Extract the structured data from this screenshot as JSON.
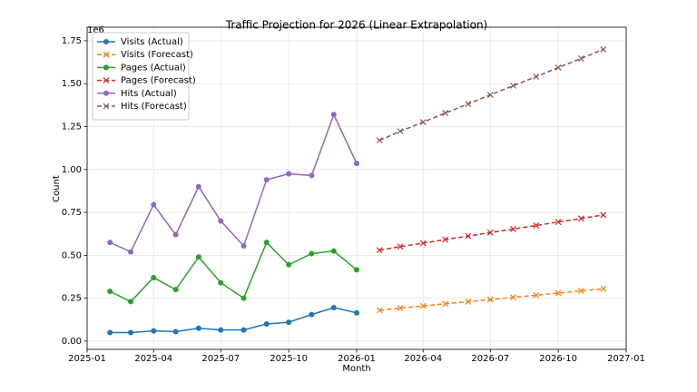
{
  "chart_data": {
    "type": "line",
    "title": "Traffic Projection for 2026 (Linear Extrapolation)",
    "x_label": "Month",
    "y_label": "Count",
    "y_offset_label": "1e6",
    "xlim": [
      "2025-01",
      "2027-01"
    ],
    "xticks": [
      "2025-01",
      "2025-04",
      "2025-07",
      "2025-10",
      "2026-01",
      "2026-04",
      "2026-07",
      "2026-10",
      "2027-01"
    ],
    "ylim": [
      -48000,
      1829000
    ],
    "yticks": [
      {
        "value": 0,
        "label": "0.00"
      },
      {
        "value": 250000,
        "label": "0.25"
      },
      {
        "value": 500000,
        "label": "0.50"
      },
      {
        "value": 750000,
        "label": "0.75"
      },
      {
        "value": 1000000,
        "label": "1.00"
      },
      {
        "value": 1250000,
        "label": "1.25"
      },
      {
        "value": 1500000,
        "label": "1.50"
      },
      {
        "value": 1750000,
        "label": "1.75"
      }
    ],
    "grid": true,
    "legend": "upper-left",
    "series": [
      {
        "name": "Visits (Actual)",
        "color": "#1f77b4",
        "marker": "o",
        "linestyle": "solid",
        "x": [
          "2025-02",
          "2025-03",
          "2025-04",
          "2025-05",
          "2025-06",
          "2025-07",
          "2025-08",
          "2025-09",
          "2025-10",
          "2025-11",
          "2025-12",
          "2026-01"
        ],
        "values": [
          50000,
          50000,
          60000,
          55000,
          75000,
          65000,
          65000,
          100000,
          110000,
          155000,
          195000,
          165000
        ]
      },
      {
        "name": "Visits (Forecast)",
        "color": "#ff7f0e",
        "marker": "x",
        "linestyle": "dashed",
        "x": [
          "2026-02",
          "2026-03",
          "2026-04",
          "2026-05",
          "2026-06",
          "2026-07",
          "2026-08",
          "2026-09",
          "2026-10",
          "2026-11",
          "2026-12"
        ],
        "values": [
          180000,
          192500,
          205000,
          217500,
          230000,
          242500,
          255000,
          267500,
          280000,
          292500,
          305000
        ]
      },
      {
        "name": "Pages (Actual)",
        "color": "#2ca02c",
        "marker": "o",
        "linestyle": "solid",
        "x": [
          "2025-02",
          "2025-03",
          "2025-04",
          "2025-05",
          "2025-06",
          "2025-07",
          "2025-08",
          "2025-09",
          "2025-10",
          "2025-11",
          "2025-12",
          "2026-01"
        ],
        "values": [
          290000,
          230000,
          370000,
          300000,
          490000,
          340000,
          250000,
          575000,
          445000,
          510000,
          525000,
          415000
        ]
      },
      {
        "name": "Pages (Forecast)",
        "color": "#d62728",
        "marker": "x",
        "linestyle": "dashed",
        "x": [
          "2026-02",
          "2026-03",
          "2026-04",
          "2026-05",
          "2026-06",
          "2026-07",
          "2026-08",
          "2026-09",
          "2026-10",
          "2026-11",
          "2026-12"
        ],
        "values": [
          530000,
          550500,
          571000,
          591500,
          612000,
          632500,
          653000,
          673500,
          694000,
          714500,
          735000
        ]
      },
      {
        "name": "Hits (Actual)",
        "color": "#9467bd",
        "marker": "o",
        "linestyle": "solid",
        "x": [
          "2025-02",
          "2025-03",
          "2025-04",
          "2025-05",
          "2025-06",
          "2025-07",
          "2025-08",
          "2025-09",
          "2025-10",
          "2025-11",
          "2025-12",
          "2026-01"
        ],
        "values": [
          575000,
          520000,
          795000,
          620000,
          900000,
          700000,
          555000,
          940000,
          975000,
          965000,
          1320000,
          1035000
        ]
      },
      {
        "name": "Hits (Forecast)",
        "color": "#8c564b",
        "marker": "x",
        "linestyle": "dashed",
        "x": [
          "2026-02",
          "2026-03",
          "2026-04",
          "2026-05",
          "2026-06",
          "2026-07",
          "2026-08",
          "2026-09",
          "2026-10",
          "2026-11",
          "2026-12"
        ],
        "values": [
          1170000,
          1223000,
          1276000,
          1329000,
          1382000,
          1435000,
          1488000,
          1541000,
          1594000,
          1647000,
          1700000
        ]
      }
    ]
  }
}
